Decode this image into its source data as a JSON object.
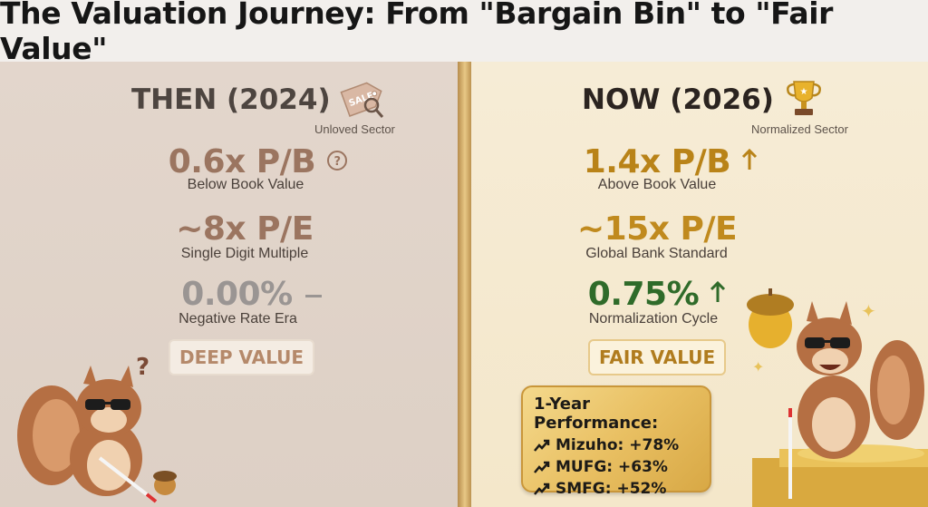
{
  "title": "The Valuation Journey: From \"Bargain Bin\" to \"Fair Value\"",
  "left": {
    "heading": "THEN (2024)",
    "tag": "Unloved Sector",
    "tag_icon": "sale-tag-icon",
    "metrics": [
      {
        "value": "0.6x P/B",
        "label": "Below Book Value",
        "indicator": "question-icon"
      },
      {
        "value": "~8x P/E",
        "label": "Single Digit Multiple",
        "indicator": ""
      },
      {
        "value": "0.00%",
        "label": "Negative Rate Era",
        "indicator": "dash-icon"
      }
    ],
    "badge": "DEEP VALUE",
    "mascot": "sad-squirrel-with-cane",
    "mascot_mark": "?"
  },
  "right": {
    "heading": "NOW (2026)",
    "tag": "Normalized Sector",
    "tag_icon": "trophy-icon",
    "metrics": [
      {
        "value": "1.4x P/B",
        "label": "Above Book Value",
        "indicator": "up-arrow-icon"
      },
      {
        "value": "~15x P/E",
        "label": "Global Bank Standard",
        "indicator": ""
      },
      {
        "value": "0.75%",
        "label": "Normalization Cycle",
        "indicator": "up-arrow-icon"
      }
    ],
    "badge": "FAIR VALUE",
    "mascot": "happy-squirrel-with-golden-acorn",
    "performance": {
      "title": "1-Year Performance:",
      "rows": [
        {
          "text": "Mizuho: +78%"
        },
        {
          "text": "MUFG: +63%"
        },
        {
          "text": "SMFG: +52%"
        }
      ]
    }
  },
  "colors": {
    "left_bg": "#e3d6cc",
    "right_bg": "#f6ecd6",
    "divider_gold": "#c9a062",
    "positive_green": "#2f6b2a",
    "gold_value": "#b98318"
  }
}
